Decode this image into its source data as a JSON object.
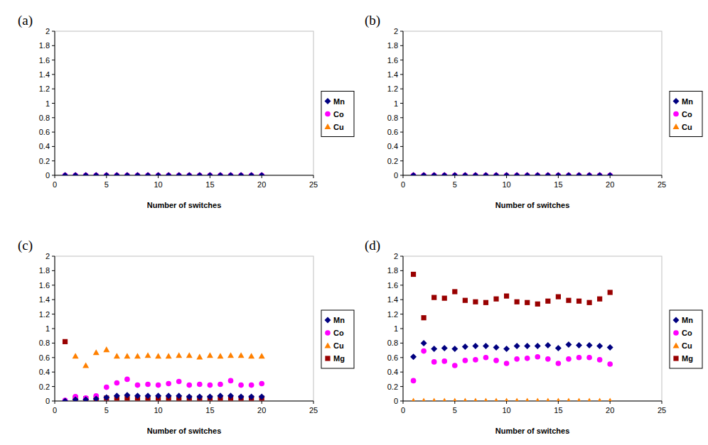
{
  "chart_data": [
    {
      "type": "scatter",
      "title": "(a)",
      "x_label": "Number of switches",
      "x": [
        1,
        2,
        3,
        4,
        5,
        6,
        7,
        8,
        9,
        10,
        11,
        12,
        13,
        14,
        15,
        16,
        17,
        18,
        19,
        20
      ],
      "xlim": [
        0,
        25
      ],
      "xticks": [
        0,
        5,
        10,
        15,
        20,
        25
      ],
      "ylim": [
        0,
        2
      ],
      "yticks": [
        0,
        0.2,
        0.4,
        0.6,
        0.8,
        1,
        1.2,
        1.4,
        1.6,
        1.8,
        2
      ],
      "legend": "right",
      "series": [
        {
          "name": "Mn",
          "color": "#000080",
          "marker": "diamond",
          "values": [
            0,
            0,
            0,
            0,
            0,
            0,
            0,
            0,
            0,
            0,
            0,
            0,
            0,
            0,
            0,
            0,
            0,
            0,
            0,
            0
          ]
        },
        {
          "name": "Co",
          "color": "#ff00ff",
          "marker": "circle",
          "values": [
            0,
            0,
            0,
            0,
            0,
            0,
            0,
            0,
            0,
            0,
            0,
            0,
            0,
            0,
            0,
            0,
            0,
            0,
            0,
            0
          ]
        },
        {
          "name": "Cu",
          "color": "#ff8000",
          "marker": "triangle",
          "values": [
            0,
            0,
            0,
            0,
            0,
            0,
            0,
            0,
            0,
            0,
            0,
            0,
            0,
            0,
            0,
            0,
            0,
            0,
            0,
            0
          ]
        }
      ]
    },
    {
      "type": "scatter",
      "title": "(b)",
      "x_label": "Number of switches",
      "x": [
        1,
        2,
        3,
        4,
        5,
        6,
        7,
        8,
        9,
        10,
        11,
        12,
        13,
        14,
        15,
        16,
        17,
        18,
        19,
        20
      ],
      "xlim": [
        0,
        25
      ],
      "xticks": [
        0,
        5,
        10,
        15,
        20,
        25
      ],
      "ylim": [
        0,
        2
      ],
      "yticks": [
        0,
        0.2,
        0.4,
        0.6,
        0.8,
        1,
        1.2,
        1.4,
        1.6,
        1.8,
        2
      ],
      "legend": "right",
      "series": [
        {
          "name": "Mn",
          "color": "#000080",
          "marker": "diamond",
          "values": [
            0,
            0,
            0,
            0,
            0,
            0,
            0,
            0,
            0,
            0,
            0,
            0,
            0,
            0,
            0,
            0,
            0,
            0,
            0,
            0
          ]
        },
        {
          "name": "Co",
          "color": "#ff00ff",
          "marker": "circle",
          "values": [
            0,
            0,
            0,
            0,
            0,
            0,
            0,
            0,
            0,
            0,
            0,
            0,
            0,
            0,
            0,
            0,
            0,
            0,
            0,
            0
          ]
        },
        {
          "name": "Cu",
          "color": "#ff8000",
          "marker": "triangle",
          "values": [
            0,
            0,
            0,
            0,
            0,
            0,
            0,
            0,
            0,
            0,
            0,
            0,
            0,
            0,
            0,
            0,
            0,
            0,
            0,
            0
          ]
        }
      ]
    },
    {
      "type": "scatter",
      "title": "(c)",
      "x_label": "Number of switches",
      "x": [
        1,
        2,
        3,
        4,
        5,
        6,
        7,
        8,
        9,
        10,
        11,
        12,
        13,
        14,
        15,
        16,
        17,
        18,
        19,
        20
      ],
      "xlim": [
        0,
        25
      ],
      "xticks": [
        0,
        5,
        10,
        15,
        20,
        25
      ],
      "ylim": [
        0,
        2
      ],
      "yticks": [
        0,
        0.2,
        0.4,
        0.6,
        0.8,
        1,
        1.2,
        1.4,
        1.6,
        1.8,
        2
      ],
      "legend": "right",
      "series": [
        {
          "name": "Mn",
          "color": "#000080",
          "marker": "diamond",
          "values": [
            0,
            0.02,
            0.02,
            0.03,
            0.05,
            0.07,
            0.08,
            0.07,
            0.07,
            0.07,
            0.07,
            0.07,
            0.06,
            0.06,
            0.06,
            0.07,
            0.07,
            0.06,
            0.06,
            0.06
          ]
        },
        {
          "name": "Co",
          "color": "#ff00ff",
          "marker": "circle",
          "values": [
            0.01,
            0.06,
            0.04,
            0.07,
            0.19,
            0.25,
            0.3,
            0.22,
            0.23,
            0.22,
            0.24,
            0.27,
            0.22,
            0.23,
            0.22,
            0.23,
            0.28,
            0.22,
            0.22,
            0.24
          ]
        },
        {
          "name": "Cu",
          "color": "#ff8000",
          "marker": "triangle",
          "values": [
            0,
            0.62,
            0.49,
            0.67,
            0.71,
            0.62,
            0.62,
            0.62,
            0.63,
            0.62,
            0.62,
            0.63,
            0.63,
            0.61,
            0.63,
            0.62,
            0.63,
            0.63,
            0.62,
            0.62
          ]
        },
        {
          "name": "Mg",
          "color": "#990000",
          "marker": "square",
          "values": [
            0.82,
            0.04,
            0.03,
            0.03,
            0.04,
            0.04,
            0.04,
            0.04,
            0.04,
            0.04,
            0.04,
            0.04,
            0.04,
            0.04,
            0.04,
            0.04,
            0.04,
            0.04,
            0.04,
            0.04
          ]
        }
      ]
    },
    {
      "type": "scatter",
      "title": "(d)",
      "x_label": "Number of switches",
      "x": [
        1,
        2,
        3,
        4,
        5,
        6,
        7,
        8,
        9,
        10,
        11,
        12,
        13,
        14,
        15,
        16,
        17,
        18,
        19,
        20
      ],
      "xlim": [
        0,
        25
      ],
      "xticks": [
        0,
        5,
        10,
        15,
        20,
        25
      ],
      "ylim": [
        0,
        2
      ],
      "yticks": [
        0,
        0.2,
        0.4,
        0.6,
        0.8,
        1,
        1.2,
        1.4,
        1.6,
        1.8,
        2
      ],
      "legend": "right",
      "series": [
        {
          "name": "Mn",
          "color": "#000080",
          "marker": "diamond",
          "values": [
            0.61,
            0.8,
            0.72,
            0.73,
            0.72,
            0.75,
            0.76,
            0.76,
            0.74,
            0.72,
            0.76,
            0.76,
            0.76,
            0.77,
            0.73,
            0.78,
            0.77,
            0.77,
            0.76,
            0.74
          ]
        },
        {
          "name": "Co",
          "color": "#ff00ff",
          "marker": "circle",
          "values": [
            0.28,
            0.69,
            0.54,
            0.55,
            0.49,
            0.56,
            0.57,
            0.6,
            0.56,
            0.52,
            0.58,
            0.59,
            0.61,
            0.58,
            0.52,
            0.58,
            0.6,
            0.6,
            0.57,
            0.51
          ]
        },
        {
          "name": "Cu",
          "color": "#ff8000",
          "marker": "triangle",
          "values": [
            0,
            0,
            0,
            0,
            0,
            0,
            0,
            0,
            0,
            0,
            0,
            0,
            0,
            0,
            0,
            0,
            0,
            0,
            0,
            0
          ]
        },
        {
          "name": "Mg",
          "color": "#990000",
          "marker": "square",
          "values": [
            1.75,
            1.15,
            1.43,
            1.42,
            1.51,
            1.39,
            1.37,
            1.36,
            1.41,
            1.45,
            1.37,
            1.36,
            1.34,
            1.38,
            1.44,
            1.39,
            1.38,
            1.36,
            1.41,
            1.5
          ]
        }
      ]
    }
  ]
}
